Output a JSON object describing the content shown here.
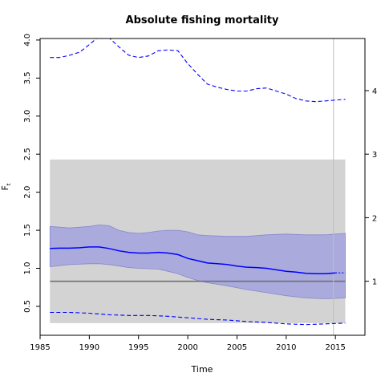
{
  "chart_data": {
    "type": "line",
    "title": "Absolute fishing mortality",
    "xlabel": "Time",
    "ylabel": "F",
    "ylabel_subscript": "t",
    "xlim": [
      1985,
      2018
    ],
    "ylim": [
      0.12,
      4.02
    ],
    "x_ticks": [
      1985,
      1990,
      1995,
      2000,
      2005,
      2010,
      2015
    ],
    "y_ticks": [
      "0.5",
      "1.0",
      "1.5",
      "2.0",
      "2.5",
      "3.0",
      "3.5",
      "4.0"
    ],
    "y2_ticks": [
      {
        "label": "1",
        "value": 0.83
      },
      {
        "label": "2",
        "value": 1.665
      },
      {
        "label": "3",
        "value": 2.5
      },
      {
        "label": "4",
        "value": 3.335
      }
    ],
    "shaded_region": {
      "x": [
        1986,
        2016
      ],
      "y": [
        0.28,
        2.43
      ],
      "color": "#d3d3d3"
    },
    "reference_line": {
      "y": 0.83,
      "color": "#707070"
    },
    "vertical_line": {
      "x": 2014.8,
      "color": "#c0c0c0"
    },
    "series": [
      {
        "role": "estimate",
        "color": "#0000ff",
        "x": [
          1986,
          1987,
          1988,
          1989,
          1990,
          1991,
          1992,
          1993,
          1994,
          1995,
          1996,
          1997,
          1998,
          1999,
          2000,
          2001,
          2002,
          2003,
          2004,
          2005,
          2006,
          2007,
          2008,
          2009,
          2010,
          2011,
          2012,
          2013,
          2014,
          2015
        ],
        "values": [
          1.26,
          1.265,
          1.265,
          1.27,
          1.28,
          1.28,
          1.26,
          1.23,
          1.21,
          1.2,
          1.2,
          1.21,
          1.2,
          1.18,
          1.13,
          1.1,
          1.07,
          1.06,
          1.05,
          1.03,
          1.015,
          1.01,
          1.0,
          0.98,
          0.96,
          0.95,
          0.935,
          0.93,
          0.93,
          0.94
        ]
      },
      {
        "role": "forecast",
        "color": "#0000ff",
        "x": [
          2015,
          2016
        ],
        "values": [
          0.94,
          0.94
        ]
      },
      {
        "role": "ci_upper",
        "color": "#0000ff",
        "x": [
          1986,
          1987,
          1988,
          1989,
          1990,
          1991,
          1992,
          1993,
          1994,
          1995,
          1996,
          1997,
          1998,
          1999,
          2000,
          2001,
          2002,
          2003,
          2004,
          2005,
          2006,
          2007,
          2008,
          2009,
          2010,
          2011,
          2012,
          2013,
          2014,
          2015,
          2016
        ],
        "values": [
          3.77,
          3.77,
          3.8,
          3.84,
          3.94,
          4.05,
          4.03,
          3.91,
          3.8,
          3.77,
          3.79,
          3.86,
          3.87,
          3.86,
          3.69,
          3.55,
          3.42,
          3.38,
          3.35,
          3.33,
          3.33,
          3.36,
          3.37,
          3.33,
          3.29,
          3.23,
          3.2,
          3.19,
          3.2,
          3.21,
          3.22
        ]
      },
      {
        "role": "ci_lower",
        "color": "#0000ff",
        "x": [
          1986,
          1988,
          1990,
          1992,
          1994,
          1996,
          1998,
          2000,
          2002,
          2004,
          2006,
          2008,
          2010,
          2012,
          2014,
          2016
        ],
        "values": [
          0.42,
          0.42,
          0.41,
          0.39,
          0.38,
          0.38,
          0.37,
          0.35,
          0.33,
          0.32,
          0.3,
          0.29,
          0.27,
          0.26,
          0.27,
          0.28
        ]
      }
    ],
    "band": {
      "color": "#aaaadd",
      "x": [
        1986,
        1988,
        1990,
        1991,
        1992,
        1993,
        1994,
        1995,
        1996,
        1997,
        1998,
        1999,
        2000,
        2001,
        2002,
        2004,
        2006,
        2008,
        2010,
        2012,
        2014,
        2016
      ],
      "upper": [
        1.55,
        1.53,
        1.55,
        1.57,
        1.56,
        1.5,
        1.47,
        1.46,
        1.47,
        1.49,
        1.5,
        1.5,
        1.48,
        1.44,
        1.43,
        1.42,
        1.42,
        1.44,
        1.45,
        1.44,
        1.44,
        1.46
      ],
      "lower": [
        1.02,
        1.05,
        1.06,
        1.06,
        1.05,
        1.03,
        1.01,
        1.0,
        0.995,
        0.99,
        0.96,
        0.93,
        0.88,
        0.84,
        0.81,
        0.77,
        0.72,
        0.68,
        0.64,
        0.61,
        0.6,
        0.61
      ]
    }
  }
}
